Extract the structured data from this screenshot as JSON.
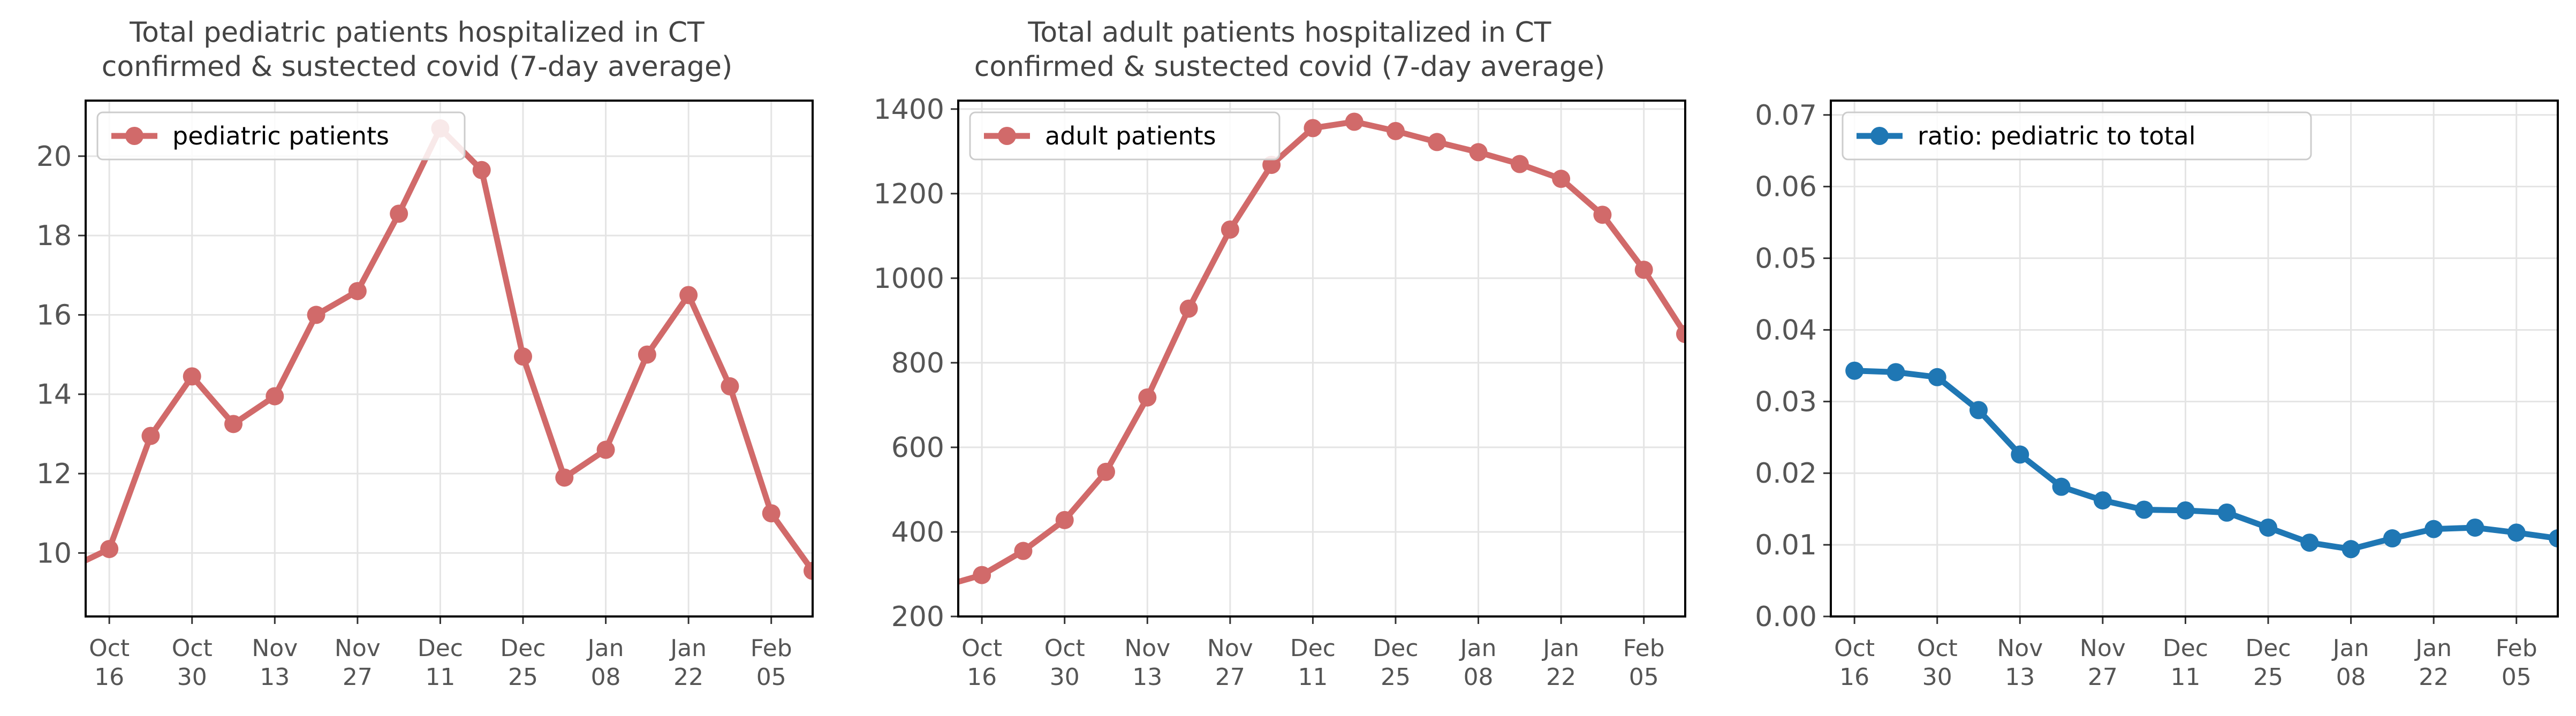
{
  "colors": {
    "red": "#d16a6a",
    "blue": "#1f77b4",
    "grid": "#e4e4e4",
    "tick_label": "#555555",
    "title": "#444444",
    "axis": "#000000"
  },
  "chart_data": [
    {
      "type": "line",
      "title": "Total pediatric patients hospitalized in CT\nconfirmed & sustected covid (7-day average)",
      "xlabel": "",
      "ylabel": "",
      "x": [
        "2021-10-09",
        "2021-10-16",
        "2021-10-23",
        "2021-10-30",
        "2021-11-06",
        "2021-11-13",
        "2021-11-20",
        "2021-11-27",
        "2021-12-04",
        "2021-12-11",
        "2021-12-18",
        "2021-12-25",
        "2022-01-01",
        "2022-01-08",
        "2022-01-15",
        "2022-01-22",
        "2022-01-29",
        "2022-02-05",
        "2022-02-12"
      ],
      "series": [
        {
          "name": "pediatric patients",
          "color": "#d16a6a",
          "values": [
            9.6,
            10.1,
            12.95,
            14.45,
            13.25,
            13.95,
            16.0,
            16.6,
            18.55,
            20.7,
            19.65,
            14.95,
            11.9,
            12.6,
            15.0,
            16.5,
            14.2,
            11.0,
            9.55
          ]
        }
      ],
      "markers_from_index": 1,
      "xlim": [
        "2021-10-12",
        "2022-02-12"
      ],
      "ylim": [
        8.4,
        21.4
      ],
      "yticks": [
        10,
        12,
        14,
        16,
        18,
        20
      ],
      "xticks": [
        "2021-10-16",
        "2021-10-30",
        "2021-11-13",
        "2021-11-27",
        "2021-12-11",
        "2021-12-25",
        "2022-01-08",
        "2022-01-22",
        "2022-02-05"
      ],
      "xtick_labels": [
        "Oct\n16",
        "Oct\n30",
        "Nov\n13",
        "Nov\n27",
        "Dec\n11",
        "Dec\n25",
        "Jan\n08",
        "Jan\n22",
        "Feb\n05"
      ],
      "legend": "upper left",
      "grid": true
    },
    {
      "type": "line",
      "title": "Total adult patients hospitalized in CT\nconfirmed & sustected covid (7-day average)",
      "xlabel": "",
      "ylabel": "",
      "x": [
        "2021-10-09",
        "2021-10-16",
        "2021-10-23",
        "2021-10-30",
        "2021-11-06",
        "2021-11-13",
        "2021-11-20",
        "2021-11-27",
        "2021-12-04",
        "2021-12-11",
        "2021-12-18",
        "2021-12-25",
        "2022-01-01",
        "2022-01-08",
        "2022-01-15",
        "2022-01-22",
        "2022-01-29",
        "2022-02-05",
        "2022-02-12"
      ],
      "series": [
        {
          "name": "adult patients",
          "color": "#d16a6a",
          "values": [
            270,
            298,
            355,
            428,
            542,
            718,
            928,
            1115,
            1268,
            1355,
            1370,
            1348,
            1322,
            1298,
            1270,
            1235,
            1150,
            1020,
            868
          ]
        }
      ],
      "markers_from_index": 1,
      "xlim": [
        "2021-10-12",
        "2022-02-12"
      ],
      "ylim": [
        200,
        1420
      ],
      "yticks": [
        200,
        400,
        600,
        800,
        1000,
        1200,
        1400
      ],
      "xticks": [
        "2021-10-16",
        "2021-10-30",
        "2021-11-13",
        "2021-11-27",
        "2021-12-11",
        "2021-12-25",
        "2022-01-08",
        "2022-01-22",
        "2022-02-05"
      ],
      "xtick_labels": [
        "Oct\n16",
        "Oct\n30",
        "Nov\n13",
        "Nov\n27",
        "Dec\n11",
        "Dec\n25",
        "Jan\n08",
        "Jan\n22",
        "Feb\n05"
      ],
      "legend": "upper left",
      "grid": true
    },
    {
      "type": "line",
      "title": "",
      "xlabel": "",
      "ylabel": "",
      "x": [
        "2021-10-16",
        "2021-10-23",
        "2021-10-30",
        "2021-11-06",
        "2021-11-13",
        "2021-11-20",
        "2021-11-27",
        "2021-12-04",
        "2021-12-11",
        "2021-12-18",
        "2021-12-25",
        "2022-01-01",
        "2022-01-08",
        "2022-01-15",
        "2022-01-22",
        "2022-01-29",
        "2022-02-05",
        "2022-02-12"
      ],
      "series": [
        {
          "name": "ratio: pediatric to total",
          "color": "#1f77b4",
          "values": [
            0.0343,
            0.0341,
            0.0334,
            0.0288,
            0.0226,
            0.0181,
            0.0162,
            0.0149,
            0.0148,
            0.0145,
            0.0124,
            0.0103,
            0.0094,
            0.0109,
            0.0122,
            0.0124,
            0.0117,
            0.0109
          ]
        }
      ],
      "markers_from_index": 0,
      "xlim": [
        "2021-10-12",
        "2022-02-12"
      ],
      "ylim": [
        0.0,
        0.072
      ],
      "yticks": [
        0.0,
        0.01,
        0.02,
        0.03,
        0.04,
        0.05,
        0.06,
        0.07
      ],
      "ytick_labels": [
        "0.00",
        "0.01",
        "0.02",
        "0.03",
        "0.04",
        "0.05",
        "0.06",
        "0.07"
      ],
      "xticks": [
        "2021-10-16",
        "2021-10-30",
        "2021-11-13",
        "2021-11-27",
        "2021-12-11",
        "2021-12-25",
        "2022-01-08",
        "2022-01-22",
        "2022-02-05"
      ],
      "xtick_labels": [
        "Oct\n16",
        "Oct\n30",
        "Nov\n13",
        "Nov\n27",
        "Dec\n11",
        "Dec\n25",
        "Jan\n08",
        "Jan\n22",
        "Feb\n05"
      ],
      "legend": "upper left",
      "grid": true
    }
  ]
}
